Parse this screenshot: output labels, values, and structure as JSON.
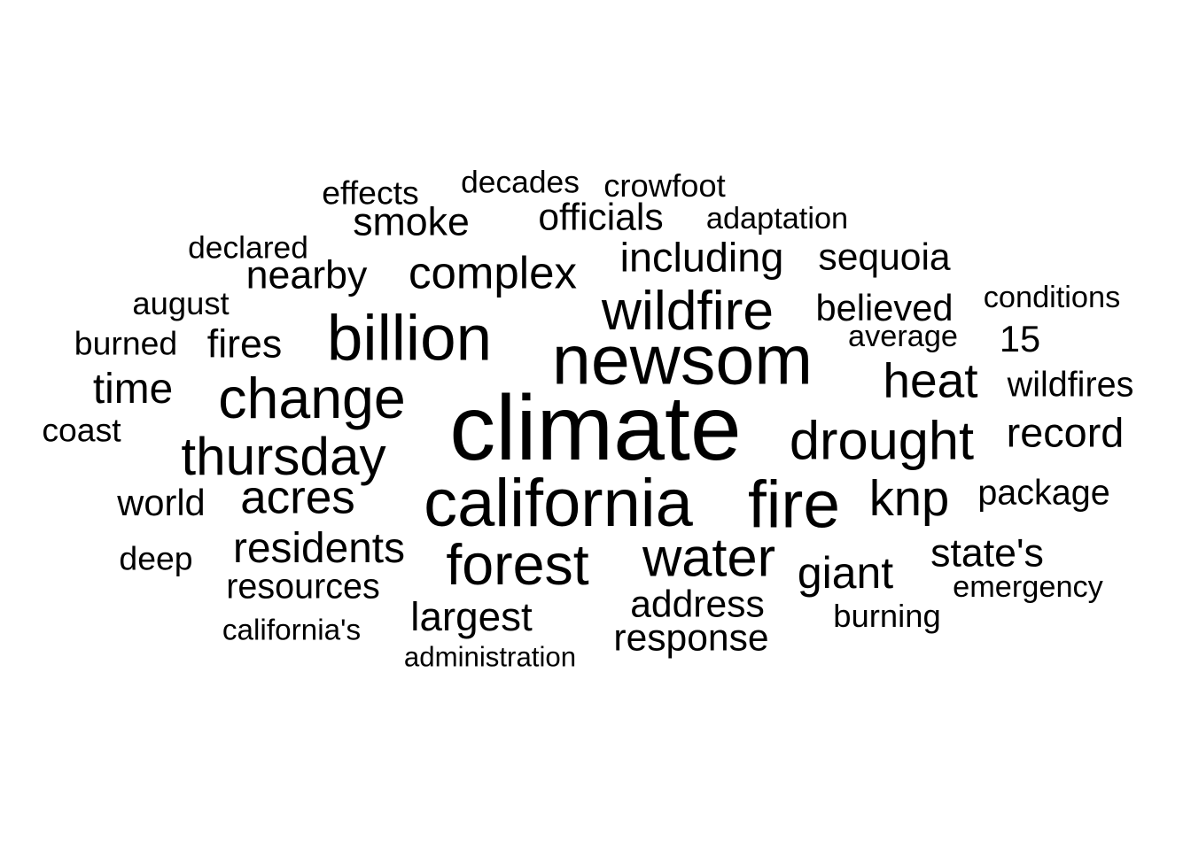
{
  "chart_data": {
    "type": "wordcloud",
    "text_color": "#000000",
    "background_color": "#ffffff",
    "words": [
      {
        "text": "climate",
        "size": 10
      },
      {
        "text": "newsom",
        "size": 7.6
      },
      {
        "text": "california",
        "size": 7.3
      },
      {
        "text": "fire",
        "size": 7.2
      },
      {
        "text": "billion",
        "size": 7.0
      },
      {
        "text": "forest",
        "size": 6.2
      },
      {
        "text": "change",
        "size": 6.2
      },
      {
        "text": "wildfire",
        "size": 6.0
      },
      {
        "text": "water",
        "size": 5.9
      },
      {
        "text": "drought",
        "size": 5.9
      },
      {
        "text": "thursday",
        "size": 5.8
      },
      {
        "text": "knp",
        "size": 5.4
      },
      {
        "text": "heat",
        "size": 5.3
      },
      {
        "text": "acres",
        "size": 5.1
      },
      {
        "text": "complex",
        "size": 4.9
      },
      {
        "text": "giant",
        "size": 4.8
      },
      {
        "text": "time",
        "size": 4.6
      },
      {
        "text": "residents",
        "size": 4.6
      },
      {
        "text": "including",
        "size": 4.5
      },
      {
        "text": "largest",
        "size": 4.4
      },
      {
        "text": "record",
        "size": 4.5
      },
      {
        "text": "nearby",
        "size": 4.3
      },
      {
        "text": "smoke",
        "size": 4.3
      },
      {
        "text": "fires",
        "size": 4.3
      },
      {
        "text": "state's",
        "size": 4.3
      },
      {
        "text": "response",
        "size": 4.1
      },
      {
        "text": "address",
        "size": 4.1
      },
      {
        "text": "sequoia",
        "size": 4.1
      },
      {
        "text": "officials",
        "size": 4.1
      },
      {
        "text": "world",
        "size": 4.0
      },
      {
        "text": "believed",
        "size": 4.0
      },
      {
        "text": "15",
        "size": 4.0
      },
      {
        "text": "package",
        "size": 3.8
      },
      {
        "text": "resources",
        "size": 3.8
      },
      {
        "text": "wildfires",
        "size": 3.8
      },
      {
        "text": "deep",
        "size": 3.6
      },
      {
        "text": "coast",
        "size": 3.6
      },
      {
        "text": "burned",
        "size": 3.6
      },
      {
        "text": "effects",
        "size": 3.6
      },
      {
        "text": "burning",
        "size": 3.5
      },
      {
        "text": "august",
        "size": 3.5
      },
      {
        "text": "crowfoot",
        "size": 3.5
      },
      {
        "text": "decades",
        "size": 3.4
      },
      {
        "text": "declared",
        "size": 3.4
      },
      {
        "text": "adaptation",
        "size": 3.3
      },
      {
        "text": "conditions",
        "size": 3.3
      },
      {
        "text": "emergency",
        "size": 3.3
      },
      {
        "text": "average",
        "size": 3.3
      },
      {
        "text": "california's",
        "size": 3.2
      },
      {
        "text": "administration",
        "size": 3.0
      }
    ]
  }
}
